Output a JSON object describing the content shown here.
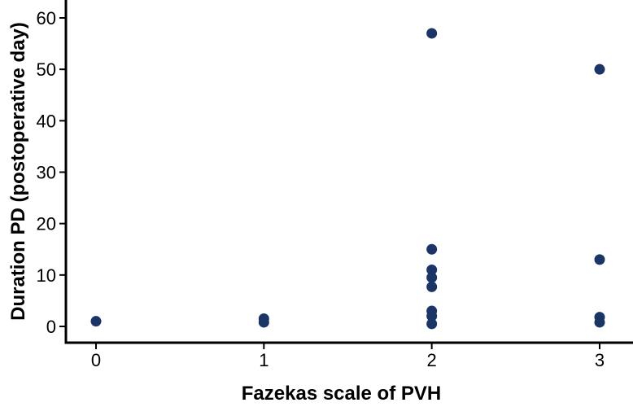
{
  "chart_data": {
    "type": "scatter",
    "title": "",
    "xlabel": "Fazekas scale of PVH",
    "ylabel": "Duration PD (postoperative day)",
    "xlim": [
      -0.1,
      3.1
    ],
    "ylim": [
      -3,
      63
    ],
    "xticks": [
      0,
      1,
      2,
      3
    ],
    "yticks": [
      0,
      10,
      20,
      30,
      40,
      50,
      60
    ],
    "grid": false,
    "legend": "none",
    "marker_color": "#1b3566",
    "series": [
      {
        "points": [
          {
            "x": 0,
            "y": 1
          },
          {
            "x": 1,
            "y": 1.5
          },
          {
            "x": 1,
            "y": 0.8
          },
          {
            "x": 2,
            "y": 57
          },
          {
            "x": 2,
            "y": 15
          },
          {
            "x": 2,
            "y": 11
          },
          {
            "x": 2,
            "y": 9.5
          },
          {
            "x": 2,
            "y": 7.7
          },
          {
            "x": 2,
            "y": 3
          },
          {
            "x": 2,
            "y": 2
          },
          {
            "x": 2,
            "y": 0.5
          },
          {
            "x": 3,
            "y": 50
          },
          {
            "x": 3,
            "y": 13
          },
          {
            "x": 3,
            "y": 1.8
          },
          {
            "x": 3,
            "y": 0.8
          }
        ]
      }
    ]
  }
}
